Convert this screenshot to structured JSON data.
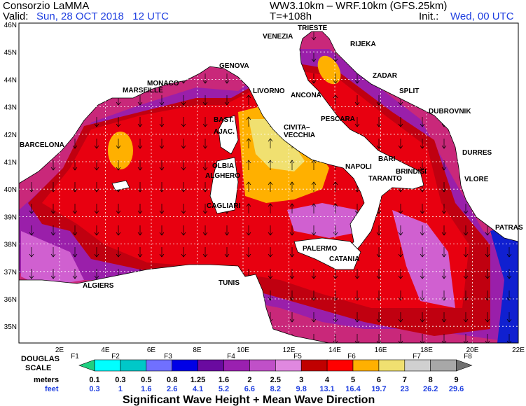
{
  "header": {
    "org": "Consorzio LaMMA",
    "valid_label": "Valid:",
    "valid": "Sun, 28 OCT 2018   12 UTC",
    "model": "WW3.10km – WRF.10km (GFS.25km)",
    "step": "T=+108h",
    "init_label": "Init.:",
    "init": "Wed, 00 UTC"
  },
  "map": {
    "cities": [
      "TRIESTE",
      "VENEZIA",
      "RIJEKA",
      "GENOVA",
      "MONACO",
      "MARSEILLE",
      "LIVORNO",
      "ANCONA",
      "ZADAR",
      "SPLIT",
      "DUBROVNIK",
      "BAST.",
      "AJAC.",
      "PESCARA",
      "CIVITA–",
      "VECCHIA",
      "BARCELONA",
      "OLBIA",
      "ALGHERO",
      "NAPOLI",
      "BARI",
      "BRINDISI",
      "DURRES",
      "TARANTO",
      "VLORE",
      "CAGLIARI",
      "PALERMO",
      "CATANIA",
      "PATRAS",
      "TUNIS",
      "ALGIERS"
    ],
    "lat_labels": [
      "46N",
      "45N",
      "44N",
      "43N",
      "42N",
      "41N",
      "40N",
      "39N",
      "38N",
      "37N",
      "36N",
      "35N"
    ],
    "lon_labels": [
      "2E",
      "4E",
      "6E",
      "8E",
      "10E",
      "12E",
      "14E",
      "16E",
      "18E",
      "20E",
      "22E"
    ]
  },
  "legend": {
    "scale_title": [
      "DOUGLAS",
      "SCALE"
    ],
    "forces": [
      "F1",
      "F2",
      "F3",
      "F4",
      "F5",
      "F6",
      "F7",
      "F8"
    ],
    "meters_label": "meters",
    "meters": [
      "0.1",
      "0.3",
      "0.5",
      "0.8",
      "1.25",
      "1.6",
      "2",
      "2.5",
      "3",
      "4",
      "5",
      "6",
      "7",
      "8",
      "9"
    ],
    "feet_label": "feet",
    "feet": [
      "0.3",
      "1",
      "1.6",
      "2.6",
      "4.1",
      "5.2",
      "6.6",
      "8.2",
      "9.8",
      "13.1",
      "16.4",
      "19.7",
      "23",
      "26.2",
      "29.6"
    ],
    "caption": "Significant Wave Height + Mean Wave Direction"
  }
}
